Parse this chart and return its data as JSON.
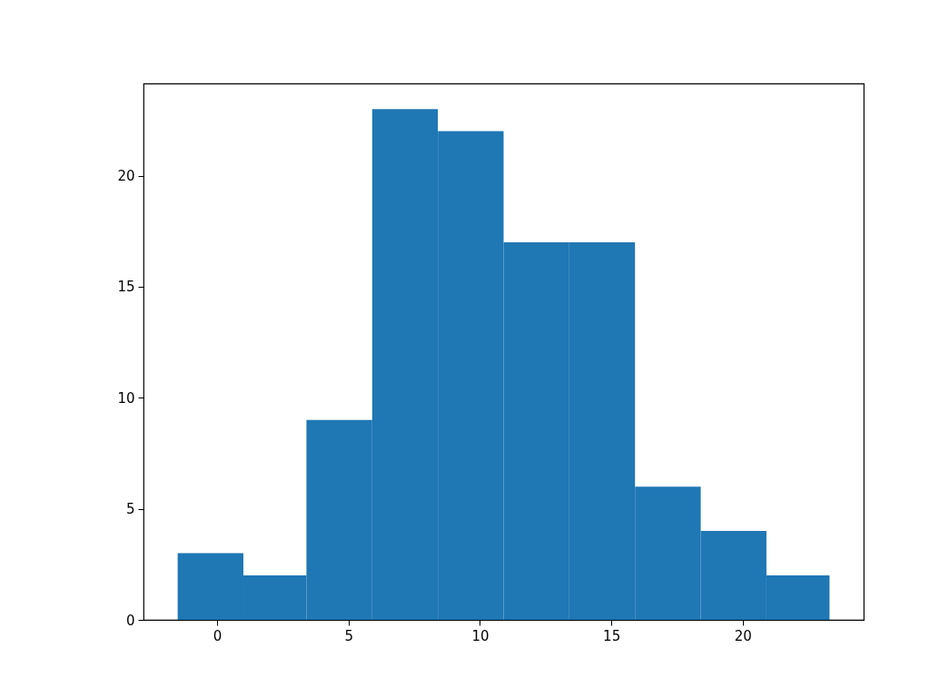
{
  "chart_data": {
    "type": "histogram",
    "bins": [
      -1.5,
      1.0,
      3.4,
      5.9,
      8.4,
      10.9,
      13.4,
      15.9,
      18.4,
      20.9,
      23.3
    ],
    "values": [
      3,
      2,
      9,
      23,
      22,
      17,
      17,
      6,
      4,
      2
    ],
    "color": "#1f77b4",
    "xlim": [
      -2.8,
      24.6
    ],
    "xticks": [
      0,
      5,
      10,
      15,
      20
    ],
    "ylim": [
      0,
      24.15
    ],
    "yticks": [
      0,
      5,
      10,
      15,
      20
    ],
    "grid": false
  }
}
